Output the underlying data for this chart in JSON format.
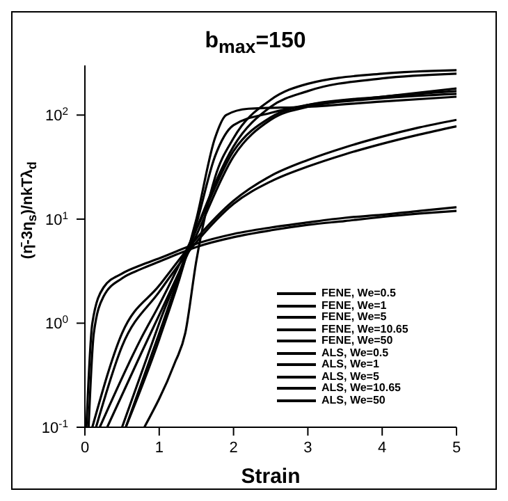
{
  "chart_data": {
    "type": "line",
    "title": "b$_{max}$=150",
    "xlabel": "Strain",
    "ylabel": "(η̄-3η$_{s}$)/nkTλ$_{d}$",
    "log": "y",
    "xlim": [
      0,
      5
    ],
    "xticks": [
      0,
      1,
      2,
      3,
      4,
      5
    ],
    "ylim": [
      0.1,
      300
    ],
    "yticks": [
      {
        "value": 0.1,
        "label": "10$^{-1}$"
      },
      {
        "value": 1,
        "label": "10$^{0}$"
      },
      {
        "value": 10,
        "label": "10$^{1}$"
      },
      {
        "value": 100,
        "label": "10$^{2}$"
      }
    ],
    "grid": false,
    "legend": "right",
    "marker": "none",
    "line_style": "solid",
    "series": [
      {
        "name": "FENE, We=0.5",
        "color": "#000000",
        "x": [
          0.02,
          0.1,
          0.25,
          0.5,
          0.75,
          1,
          1.5,
          2,
          2.5,
          3,
          3.5,
          4,
          4.5,
          5
        ],
        "values": [
          0.1,
          1,
          2.2,
          3,
          3.6,
          4.2,
          5.8,
          7.2,
          8.3,
          9.3,
          10.3,
          11,
          12,
          13
        ]
      },
      {
        "name": "FENE, We=1",
        "color": "#000000",
        "x": [
          0.15,
          0.5,
          1,
          1.5,
          2,
          2.5,
          3,
          3.5,
          4,
          4.5,
          5
        ],
        "values": [
          0.1,
          0.6,
          2,
          6,
          14,
          23,
          32,
          42,
          53,
          65,
          78
        ]
      },
      {
        "name": "FENE, We=5",
        "color": "#000000",
        "x": [
          0.3,
          0.75,
          1,
          1.5,
          2,
          2.5,
          3,
          4,
          5
        ],
        "values": [
          0.1,
          0.5,
          1.2,
          7,
          40,
          90,
          120,
          145,
          160
        ]
      },
      {
        "name": "FENE, We=10.65",
        "color": "#000000",
        "x": [
          0.55,
          1,
          1.5,
          2,
          2.5,
          3,
          4,
          5
        ],
        "values": [
          0.1,
          0.8,
          8,
          50,
          120,
          170,
          225,
          250
        ]
      },
      {
        "name": "FENE, We=50",
        "color": "#000000",
        "x": [
          0.8,
          1.2,
          1.35,
          1.5,
          1.75,
          2,
          2.5,
          3,
          4,
          5
        ],
        "values": [
          0.1,
          0.4,
          0.8,
          4,
          25,
          60,
          140,
          200,
          250,
          270
        ]
      },
      {
        "name": "ALS, We=0.5",
        "color": "#000000",
        "x": [
          0.05,
          0.12,
          0.25,
          0.5,
          0.75,
          1,
          1.5,
          2,
          2.5,
          3,
          3.5,
          4,
          4.5,
          5
        ],
        "values": [
          0.1,
          0.8,
          1.8,
          2.7,
          3.3,
          3.9,
          5.4,
          6.7,
          7.8,
          8.8,
          9.6,
          10.5,
          11.3,
          12
        ]
      },
      {
        "name": "ALS, We=1",
        "color": "#000000",
        "x": [
          0.1,
          0.5,
          1,
          1.5,
          2,
          2.5,
          3,
          3.5,
          4,
          4.5,
          5
        ],
        "values": [
          0.1,
          0.8,
          2.3,
          6.5,
          15,
          26,
          37,
          49,
          62,
          76,
          90
        ]
      },
      {
        "name": "ALS, We=5",
        "color": "#000000",
        "x": [
          0.2,
          0.75,
          1,
          1.5,
          2,
          2.5,
          3,
          4,
          5
        ],
        "values": [
          0.1,
          0.7,
          1.5,
          8,
          45,
          95,
          125,
          150,
          170
        ]
      },
      {
        "name": "ALS, We=10.65",
        "color": "#000000",
        "x": [
          0.5,
          1,
          1.5,
          1.75,
          2,
          2.5,
          3,
          4,
          5
        ],
        "values": [
          0.1,
          1,
          9,
          40,
          80,
          105,
          125,
          150,
          180
        ]
      },
      {
        "name": "ALS, We=50",
        "color": "#000000",
        "x": [
          0.55,
          1,
          1.5,
          1.75,
          1.9,
          2.2,
          3,
          4,
          5
        ],
        "values": [
          0.1,
          0.7,
          10,
          60,
          100,
          115,
          120,
          135,
          150
        ]
      }
    ]
  }
}
